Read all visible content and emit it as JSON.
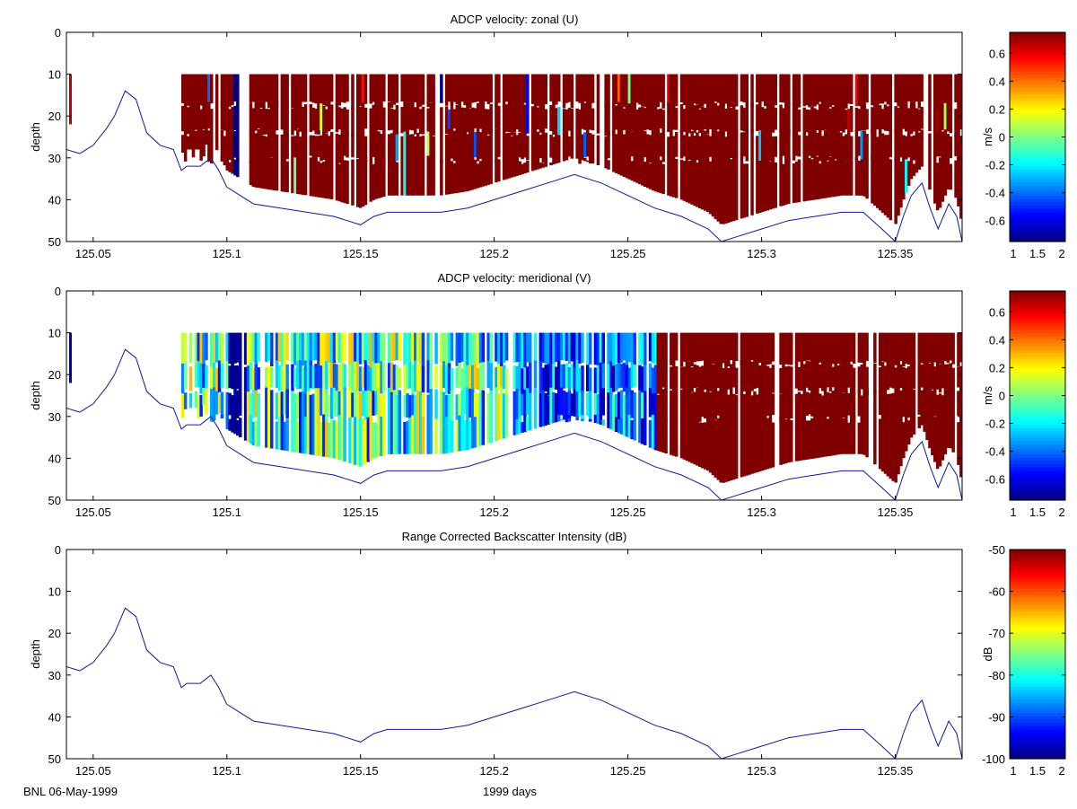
{
  "footer": {
    "left": "BNL 06-May-1999",
    "xlabel": "1999 days"
  },
  "chart_data": [
    {
      "type": "heatmap",
      "title": "ADCP velocity: zonal (U)",
      "ylabel": "depth",
      "xlim": [
        125.04,
        125.375
      ],
      "ylim": [
        0,
        50
      ],
      "y_reversed": true,
      "xticks": [
        125.05,
        125.1,
        125.15,
        125.2,
        125.25,
        125.3,
        125.35
      ],
      "xticklabels": [
        "125.05",
        "125.1",
        "125.15",
        "125.2",
        "125.25",
        "125.3",
        "125.35"
      ],
      "yticks": [
        0,
        10,
        20,
        30,
        40,
        50
      ],
      "colorbar": {
        "label": "m/s",
        "colormap": "jet",
        "clim": [
          -0.75,
          0.75
        ],
        "ticks": [
          0.6,
          0.4,
          0.2,
          0,
          -0.2,
          -0.4,
          -0.6
        ],
        "ticklabels": [
          "0.6",
          "0.4",
          "0.2",
          "0",
          "-0.2",
          "-0.4",
          "-0.6"
        ],
        "xticklabels": [
          "1",
          "1.5",
          "2"
        ]
      },
      "data_xrange": [
        125.082,
        125.375
      ],
      "bin_depths": [
        10,
        20,
        30,
        40
      ],
      "dominant_value": 0.75,
      "pattern": "zonal"
    },
    {
      "type": "heatmap",
      "title": "ADCP velocity: meridional (V)",
      "ylabel": "depth",
      "xlim": [
        125.04,
        125.375
      ],
      "ylim": [
        0,
        50
      ],
      "y_reversed": true,
      "xticks": [
        125.05,
        125.1,
        125.15,
        125.2,
        125.25,
        125.3,
        125.35
      ],
      "xticklabels": [
        "125.05",
        "125.1",
        "125.15",
        "125.2",
        "125.25",
        "125.3",
        "125.35"
      ],
      "yticks": [
        0,
        10,
        20,
        30,
        40,
        50
      ],
      "colorbar": {
        "label": "m/s",
        "colormap": "jet",
        "clim": [
          -0.75,
          0.75
        ],
        "ticks": [
          0.6,
          0.4,
          0.2,
          0,
          -0.2,
          -0.4,
          -0.6
        ],
        "ticklabels": [
          "0.6",
          "0.4",
          "0.2",
          "0",
          "-0.2",
          "-0.4",
          "-0.6"
        ],
        "xticklabels": [
          "1",
          "1.5",
          "2"
        ]
      },
      "data_xrange": [
        125.082,
        125.375
      ],
      "bin_depths": [
        10,
        20,
        30,
        40
      ],
      "segments": [
        {
          "x": [
            125.082,
            125.26
          ],
          "description_value_range": [
            -0.7,
            0.4
          ]
        },
        {
          "x": [
            125.26,
            125.375
          ],
          "value": 0.75
        }
      ],
      "pattern": "meridional"
    },
    {
      "type": "heatmap",
      "title": "Range Corrected Backscatter Intensity (dB)",
      "ylabel": "depth",
      "xlim": [
        125.04,
        125.375
      ],
      "ylim": [
        0,
        50
      ],
      "y_reversed": true,
      "xticks": [
        125.05,
        125.1,
        125.15,
        125.2,
        125.25,
        125.3,
        125.35
      ],
      "xticklabels": [
        "125.05",
        "125.1",
        "125.15",
        "125.2",
        "125.25",
        "125.3",
        "125.35"
      ],
      "yticks": [
        0,
        10,
        20,
        30,
        40,
        50
      ],
      "colorbar": {
        "label": "dB",
        "colormap": "jet",
        "clim": [
          -100,
          -50
        ],
        "ticks": [
          -50,
          -60,
          -70,
          -80,
          -90,
          -100
        ],
        "ticklabels": [
          "-50",
          "-60",
          "-70",
          "-80",
          "-90",
          "-100"
        ],
        "xticklabels": [
          "1",
          "1.5",
          "2"
        ]
      },
      "pattern": "none"
    }
  ],
  "bottom_depth": {
    "x": [
      125.04,
      125.045,
      125.05,
      125.055,
      125.058,
      125.062,
      125.066,
      125.07,
      125.075,
      125.08,
      125.083,
      125.085,
      125.09,
      125.094,
      125.097,
      125.1,
      125.105,
      125.11,
      125.12,
      125.13,
      125.14,
      125.145,
      125.15,
      125.155,
      125.16,
      125.17,
      125.18,
      125.19,
      125.2,
      125.21,
      125.22,
      125.23,
      125.24,
      125.25,
      125.26,
      125.27,
      125.28,
      125.285,
      125.29,
      125.3,
      125.31,
      125.32,
      125.33,
      125.338,
      125.345,
      125.35,
      125.353,
      125.356,
      125.36,
      125.363,
      125.366,
      125.37,
      125.373,
      125.375
    ],
    "y": [
      28,
      29,
      27,
      23,
      20,
      14,
      16,
      24,
      27,
      28,
      33,
      32,
      32,
      30,
      33,
      37,
      39,
      41,
      42,
      43,
      44,
      45,
      46,
      44,
      43,
      43,
      43,
      42,
      40,
      38,
      36,
      34,
      36,
      39,
      42,
      44,
      47,
      50,
      49,
      47,
      45,
      44,
      43,
      43,
      47,
      50,
      44,
      39,
      36,
      42,
      47,
      41,
      44,
      50
    ]
  }
}
